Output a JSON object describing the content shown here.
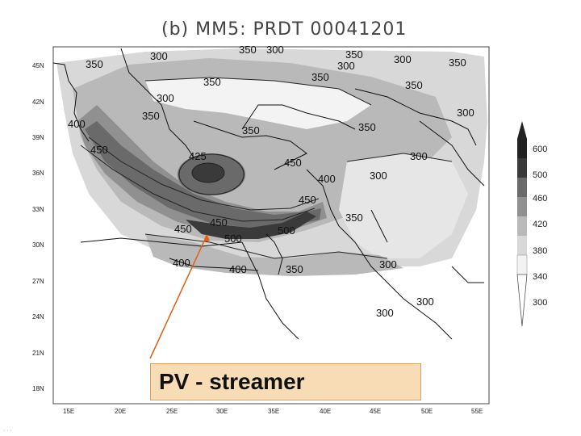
{
  "title": "(b)  MM5:  PRDT  00041201",
  "map": {
    "lat_labels": [
      "45N",
      "42N",
      "39N",
      "36N",
      "33N",
      "30N",
      "27N",
      "24N",
      "21N",
      "18N"
    ],
    "lon_labels": [
      "15E",
      "20E",
      "25E",
      "30E",
      "35E",
      "40E",
      "45E",
      "50E",
      "55E"
    ],
    "contour_labels": [
      "350",
      "300",
      "350",
      "300",
      "350",
      "300",
      "350",
      "350",
      "300",
      "350",
      "350",
      "300",
      "350",
      "400",
      "450",
      "300",
      "350",
      "450",
      "300",
      "400",
      "300",
      "350",
      "450",
      "350",
      "450",
      "450",
      "500",
      "500",
      "400",
      "400",
      "350",
      "300",
      "300",
      "300",
      "425"
    ],
    "contour_levels": [
      300,
      340,
      380,
      420,
      460,
      500,
      600
    ],
    "colors": {
      "level_300": "#f3f3f3",
      "level_340": "#d8d8d8",
      "level_380": "#b9b9b9",
      "level_420": "#909090",
      "level_460": "#6a6a6a",
      "level_500": "#3a3a3a",
      "level_600": "#222222",
      "coast": "#111111",
      "arrow": "#e06010"
    }
  },
  "legend": {
    "labels": [
      "600",
      "500",
      "460",
      "420",
      "380",
      "340",
      "300"
    ]
  },
  "callout": {
    "text": "PV - streamer"
  },
  "footer_text": "· · ·"
}
